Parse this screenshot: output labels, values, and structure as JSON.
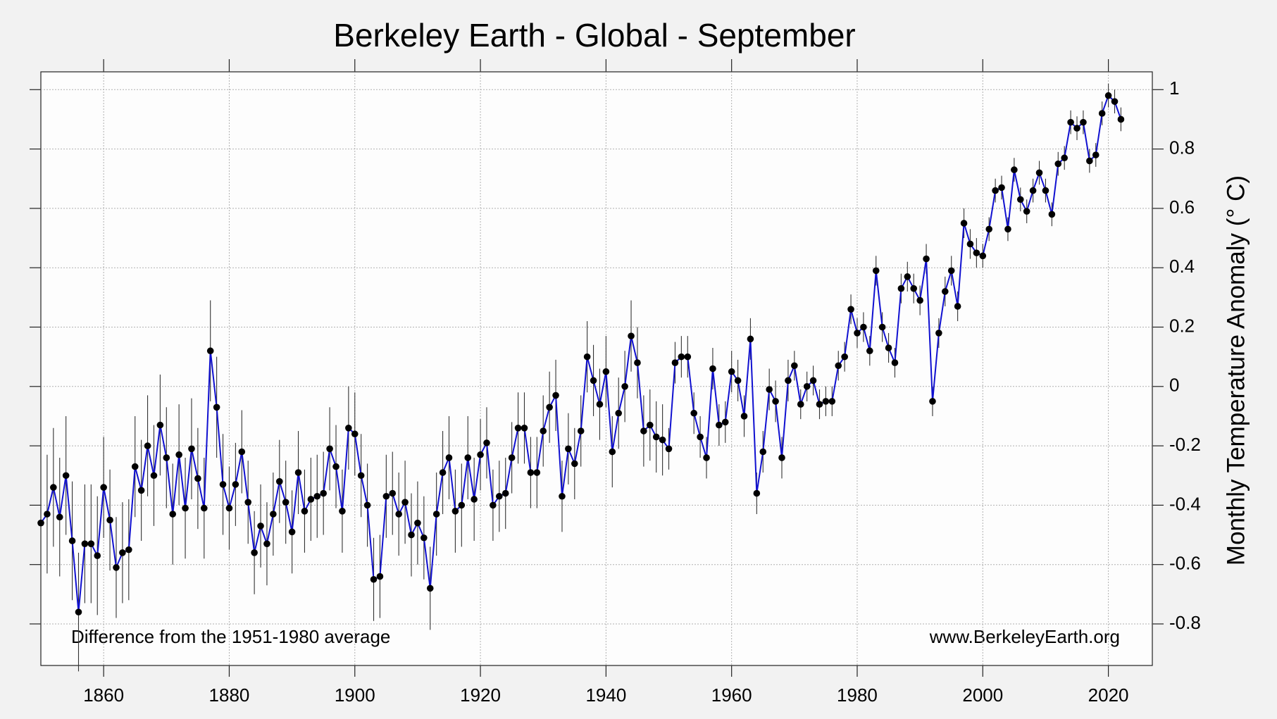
{
  "chart_data": {
    "type": "line",
    "title": "Berkeley Earth - Global - September",
    "y_label": "Monthly Temperature Anomaly (° C)",
    "annotations": [
      "Difference from the 1951-1980 average",
      "www.BerkeleyEarth.org"
    ],
    "color": "#1010d0",
    "marker_color": "#000000",
    "grid": true,
    "xlim": [
      1850,
      2027
    ],
    "ylim": [
      -0.94,
      1.06
    ],
    "xticks": [
      1860,
      1880,
      1900,
      1920,
      1940,
      1960,
      1980,
      2000,
      2020
    ],
    "yticks": [
      -0.8,
      -0.6,
      -0.4,
      -0.2,
      0,
      0.2,
      0.4,
      0.6,
      0.8,
      1
    ],
    "x": [
      1850,
      1851,
      1852,
      1853,
      1854,
      1855,
      1856,
      1857,
      1858,
      1859,
      1860,
      1861,
      1862,
      1863,
      1864,
      1865,
      1866,
      1867,
      1868,
      1869,
      1870,
      1871,
      1872,
      1873,
      1874,
      1875,
      1876,
      1877,
      1878,
      1879,
      1880,
      1881,
      1882,
      1883,
      1884,
      1885,
      1886,
      1887,
      1888,
      1889,
      1890,
      1891,
      1892,
      1893,
      1894,
      1895,
      1896,
      1897,
      1898,
      1899,
      1900,
      1901,
      1902,
      1903,
      1904,
      1905,
      1906,
      1907,
      1908,
      1909,
      1910,
      1911,
      1912,
      1913,
      1914,
      1915,
      1916,
      1917,
      1918,
      1919,
      1920,
      1921,
      1922,
      1923,
      1924,
      1925,
      1926,
      1927,
      1928,
      1929,
      1930,
      1931,
      1932,
      1933,
      1934,
      1935,
      1936,
      1937,
      1938,
      1939,
      1940,
      1941,
      1942,
      1943,
      1944,
      1945,
      1946,
      1947,
      1948,
      1949,
      1950,
      1951,
      1952,
      1953,
      1954,
      1955,
      1956,
      1957,
      1958,
      1959,
      1960,
      1961,
      1962,
      1963,
      1964,
      1965,
      1966,
      1967,
      1968,
      1969,
      1970,
      1971,
      1972,
      1973,
      1974,
      1975,
      1976,
      1977,
      1978,
      1979,
      1980,
      1981,
      1982,
      1983,
      1984,
      1985,
      1986,
      1987,
      1988,
      1989,
      1990,
      1991,
      1992,
      1993,
      1994,
      1995,
      1996,
      1997,
      1998,
      1999,
      2000,
      2001,
      2002,
      2003,
      2004,
      2005,
      2006,
      2007,
      2008,
      2009,
      2010,
      2011,
      2012,
      2013,
      2014,
      2015,
      2016,
      2017,
      2018,
      2019,
      2020,
      2021,
      2022
    ],
    "values": [
      -0.46,
      -0.43,
      -0.34,
      -0.44,
      -0.3,
      -0.52,
      -0.76,
      -0.53,
      -0.53,
      -0.57,
      -0.34,
      -0.45,
      -0.61,
      -0.56,
      -0.55,
      -0.27,
      -0.35,
      -0.2,
      -0.3,
      -0.13,
      -0.24,
      -0.43,
      -0.23,
      -0.41,
      -0.21,
      -0.31,
      -0.41,
      0.12,
      -0.07,
      -0.33,
      -0.41,
      -0.33,
      -0.22,
      -0.39,
      -0.56,
      -0.47,
      -0.53,
      -0.43,
      -0.32,
      -0.39,
      -0.49,
      -0.29,
      -0.42,
      -0.38,
      -0.37,
      -0.36,
      -0.21,
      -0.27,
      -0.42,
      -0.14,
      -0.16,
      -0.3,
      -0.4,
      -0.65,
      -0.64,
      -0.37,
      -0.36,
      -0.43,
      -0.39,
      -0.5,
      -0.46,
      -0.51,
      -0.68,
      -0.43,
      -0.29,
      -0.24,
      -0.42,
      -0.4,
      -0.24,
      -0.38,
      -0.23,
      -0.19,
      -0.4,
      -0.37,
      -0.36,
      -0.24,
      -0.14,
      -0.14,
      -0.29,
      -0.29,
      -0.15,
      -0.07,
      -0.03,
      -0.37,
      -0.21,
      -0.26,
      -0.15,
      0.1,
      0.02,
      -0.06,
      0.05,
      -0.22,
      -0.09,
      0.0,
      0.17,
      0.08,
      -0.15,
      -0.13,
      -0.17,
      -0.18,
      -0.21,
      0.08,
      0.1,
      0.1,
      -0.09,
      -0.17,
      -0.24,
      0.06,
      -0.13,
      -0.12,
      0.05,
      0.02,
      -0.1,
      0.16,
      -0.36,
      -0.22,
      -0.01,
      -0.05,
      -0.24,
      0.02,
      0.07,
      -0.06,
      0.0,
      0.02,
      -0.06,
      -0.05,
      -0.05,
      0.07,
      0.1,
      0.26,
      0.18,
      0.2,
      0.12,
      0.39,
      0.2,
      0.13,
      0.08,
      0.33,
      0.37,
      0.33,
      0.29,
      0.43,
      -0.05,
      0.18,
      0.32,
      0.39,
      0.27,
      0.55,
      0.48,
      0.45,
      0.44,
      0.53,
      0.66,
      0.67,
      0.53,
      0.73,
      0.63,
      0.59,
      0.66,
      0.72,
      0.66,
      0.58,
      0.75,
      0.77,
      0.89,
      0.87,
      0.89,
      0.76,
      0.78,
      0.92,
      0.98,
      0.96,
      0.9
    ],
    "errors": [
      0.2,
      0.2,
      0.2,
      0.2,
      0.2,
      0.2,
      0.2,
      0.2,
      0.2,
      0.2,
      0.17,
      0.17,
      0.17,
      0.17,
      0.17,
      0.17,
      0.17,
      0.17,
      0.17,
      0.17,
      0.17,
      0.17,
      0.17,
      0.17,
      0.17,
      0.17,
      0.17,
      0.17,
      0.17,
      0.17,
      0.14,
      0.14,
      0.14,
      0.14,
      0.14,
      0.14,
      0.14,
      0.14,
      0.14,
      0.14,
      0.14,
      0.14,
      0.14,
      0.14,
      0.14,
      0.14,
      0.14,
      0.14,
      0.14,
      0.14,
      0.14,
      0.14,
      0.14,
      0.14,
      0.14,
      0.14,
      0.14,
      0.14,
      0.14,
      0.14,
      0.14,
      0.14,
      0.14,
      0.14,
      0.14,
      0.14,
      0.14,
      0.14,
      0.14,
      0.14,
      0.12,
      0.12,
      0.12,
      0.12,
      0.12,
      0.12,
      0.12,
      0.12,
      0.12,
      0.12,
      0.12,
      0.12,
      0.12,
      0.12,
      0.12,
      0.12,
      0.12,
      0.12,
      0.12,
      0.12,
      0.12,
      0.12,
      0.12,
      0.12,
      0.12,
      0.12,
      0.12,
      0.12,
      0.12,
      0.12,
      0.07,
      0.07,
      0.07,
      0.07,
      0.07,
      0.07,
      0.07,
      0.07,
      0.07,
      0.07,
      0.07,
      0.07,
      0.07,
      0.07,
      0.07,
      0.07,
      0.07,
      0.07,
      0.07,
      0.07,
      0.05,
      0.05,
      0.05,
      0.05,
      0.05,
      0.05,
      0.05,
      0.05,
      0.05,
      0.05,
      0.05,
      0.05,
      0.05,
      0.05,
      0.05,
      0.05,
      0.05,
      0.05,
      0.05,
      0.05,
      0.05,
      0.05,
      0.05,
      0.05,
      0.05,
      0.05,
      0.05,
      0.05,
      0.05,
      0.05,
      0.04,
      0.04,
      0.04,
      0.04,
      0.04,
      0.04,
      0.04,
      0.04,
      0.04,
      0.04,
      0.04,
      0.04,
      0.04,
      0.04,
      0.04,
      0.04,
      0.04,
      0.04,
      0.04,
      0.04,
      0.04,
      0.04,
      0.04
    ]
  }
}
